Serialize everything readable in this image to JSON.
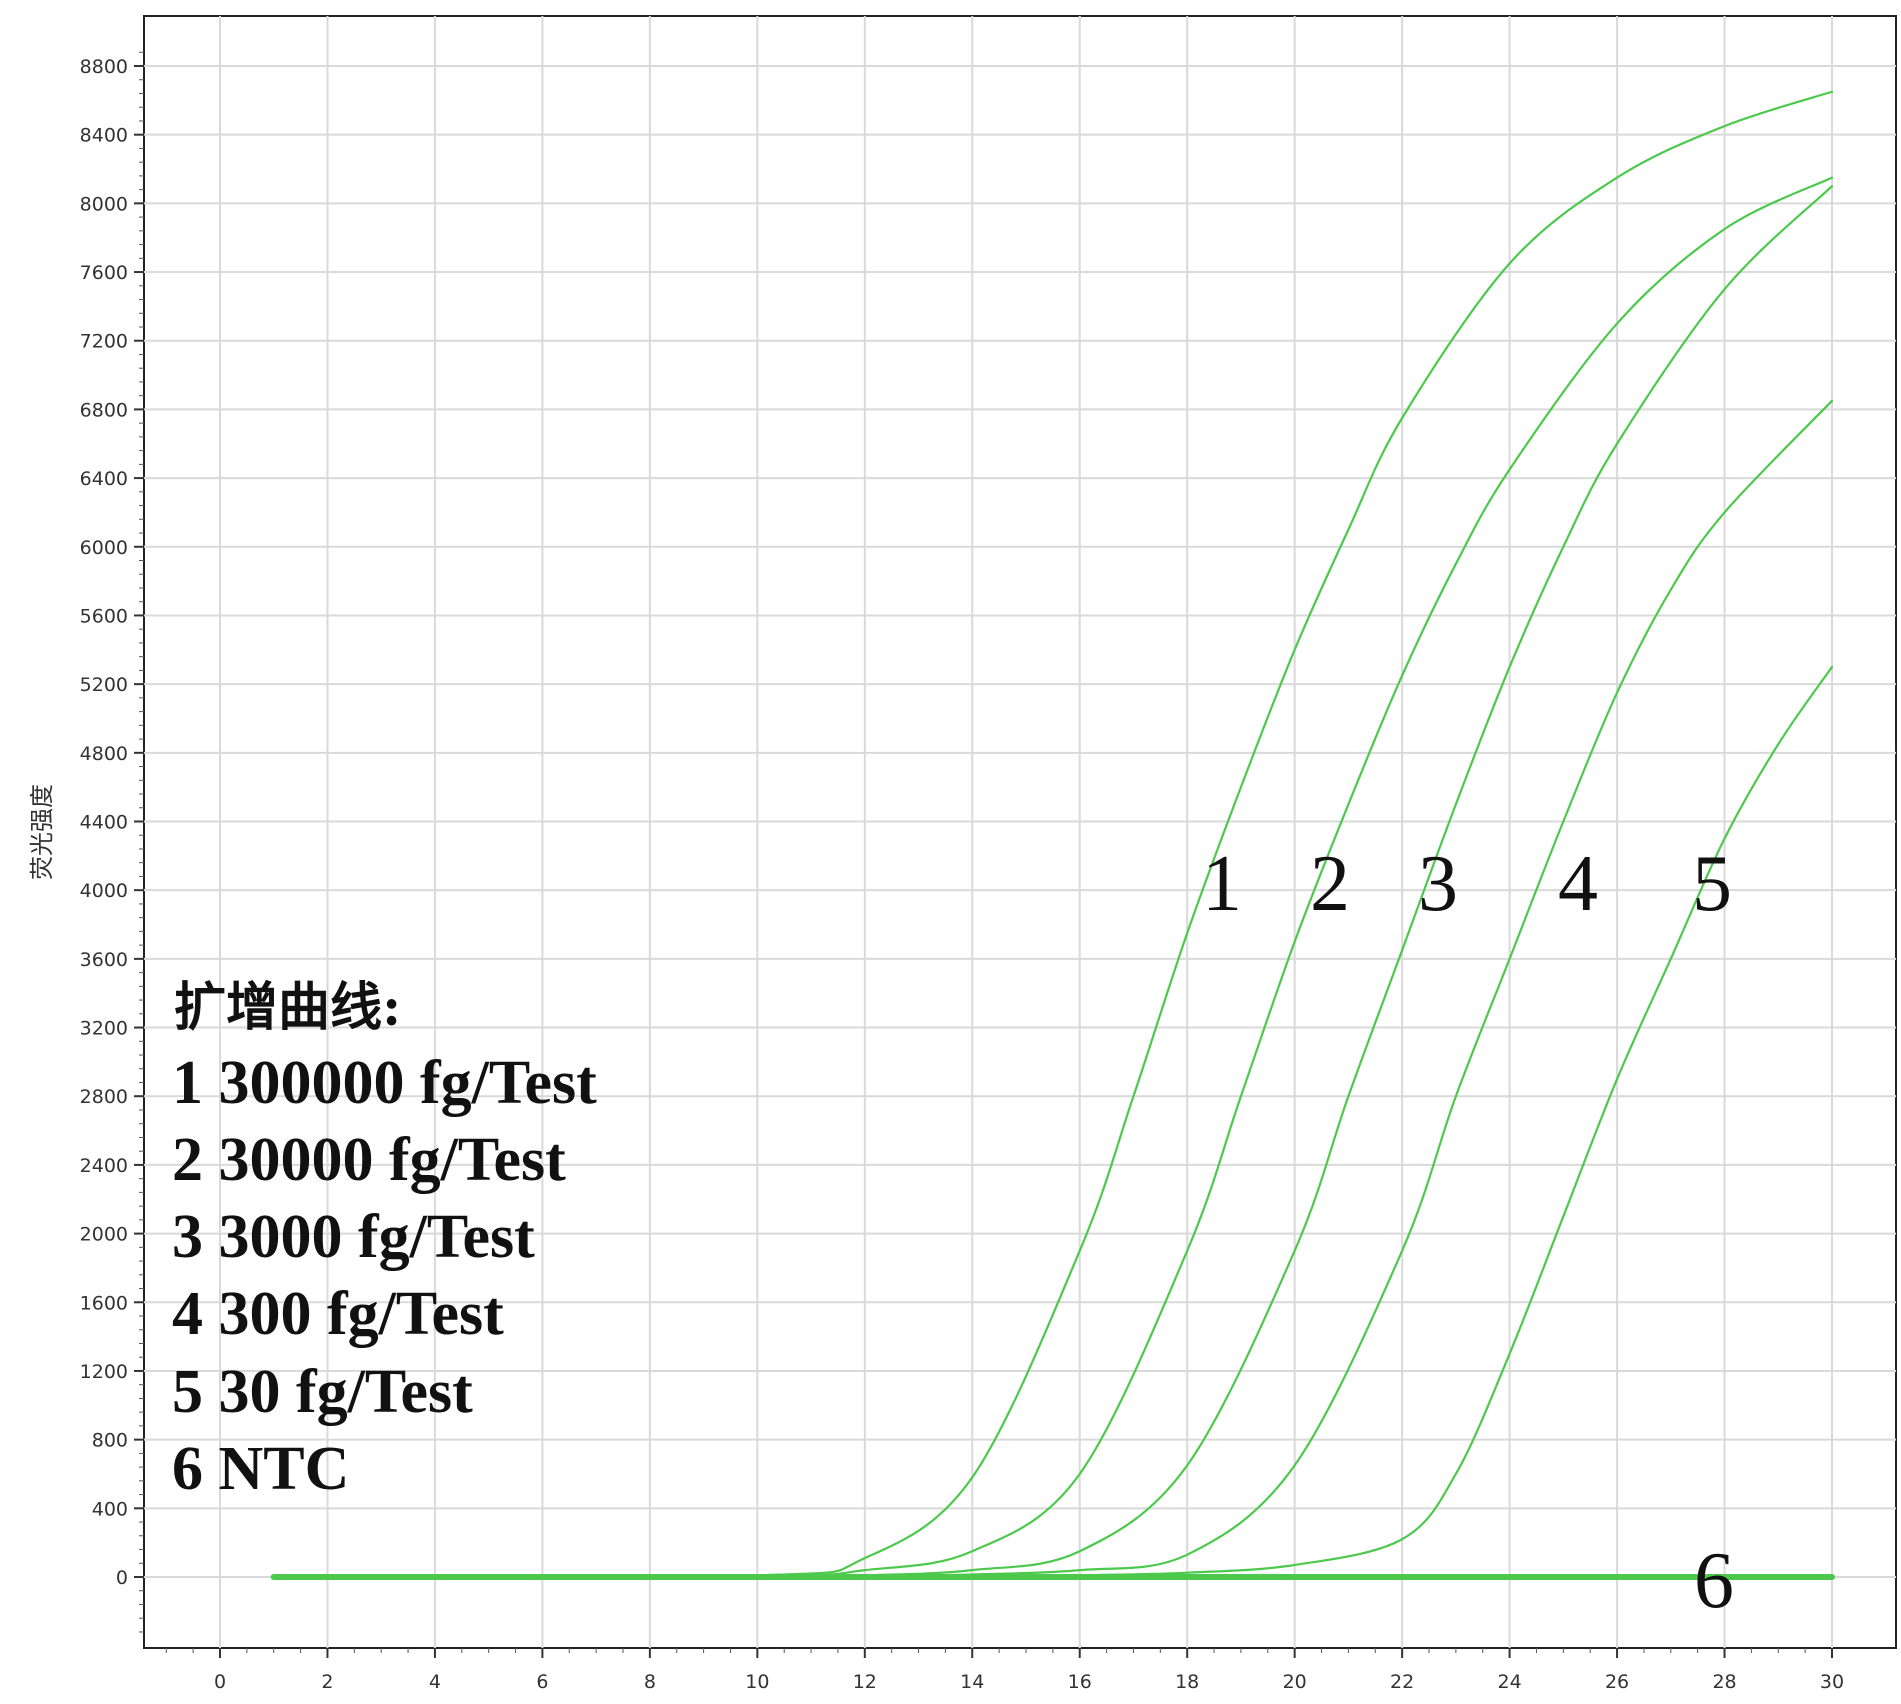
{
  "chart_data": {
    "type": "line",
    "ylabel": "荧光强度",
    "xlabel": "",
    "xlim": [
      -1.5,
      30
    ],
    "ylim": [
      -400,
      8900
    ],
    "x_ticks": [
      0,
      2,
      4,
      6,
      8,
      10,
      12,
      14,
      16,
      18,
      20,
      22,
      24,
      26,
      28,
      30
    ],
    "y_ticks": [
      0,
      400,
      800,
      1200,
      1600,
      2000,
      2400,
      2800,
      3200,
      3600,
      4000,
      4400,
      4800,
      5200,
      5600,
      6000,
      6400,
      6800,
      7200,
      7600,
      8000,
      8400,
      8800
    ],
    "grid": true,
    "color": "#4cc94c",
    "legend": {
      "title": "扩增曲线:",
      "entries": [
        "1 300000 fg/Test",
        "2 30000 fg/Test",
        "3 3000 fg/Test",
        "4 300 fg/Test",
        "5 30 fg/Test",
        "6 NTC"
      ]
    },
    "series": [
      {
        "name": "1",
        "label": "1",
        "x": [
          1,
          10,
          12,
          14,
          16,
          17,
          18,
          19,
          20,
          21,
          22,
          24,
          26,
          28,
          30
        ],
        "y": [
          0,
          10,
          110,
          580,
          1900,
          2800,
          3750,
          4600,
          5400,
          6100,
          6750,
          7650,
          8150,
          8450,
          8650
        ]
      },
      {
        "name": "2",
        "label": "2",
        "x": [
          1,
          10,
          12,
          14,
          16,
          18,
          19,
          20,
          21,
          22,
          23,
          24,
          26,
          28,
          30
        ],
        "y": [
          0,
          5,
          40,
          150,
          600,
          1900,
          2800,
          3700,
          4500,
          5250,
          5900,
          6450,
          7300,
          7850,
          8150
        ]
      },
      {
        "name": "3",
        "label": "3",
        "x": [
          1,
          10,
          12,
          14,
          16,
          18,
          20,
          21,
          22,
          23,
          24,
          25,
          26,
          28,
          30
        ],
        "y": [
          0,
          2,
          10,
          40,
          150,
          650,
          1900,
          2800,
          3650,
          4500,
          5300,
          6000,
          6600,
          7500,
          8100
        ]
      },
      {
        "name": "4",
        "label": "4",
        "x": [
          1,
          10,
          12,
          14,
          16,
          18,
          20,
          22,
          23,
          24,
          25,
          26,
          27,
          28,
          30
        ],
        "y": [
          0,
          0,
          5,
          15,
          40,
          130,
          650,
          1900,
          2800,
          3600,
          4400,
          5150,
          5750,
          6200,
          6850
        ]
      },
      {
        "name": "5",
        "label": "5",
        "x": [
          1,
          10,
          14,
          16,
          18,
          20,
          22,
          23,
          24,
          25,
          26,
          27,
          28,
          29,
          30
        ],
        "y": [
          0,
          0,
          5,
          10,
          25,
          70,
          220,
          600,
          1300,
          2100,
          2900,
          3600,
          4300,
          4850,
          5300
        ]
      },
      {
        "name": "6",
        "label": "6",
        "x": [
          1,
          30
        ],
        "y": [
          0,
          0
        ]
      }
    ]
  }
}
